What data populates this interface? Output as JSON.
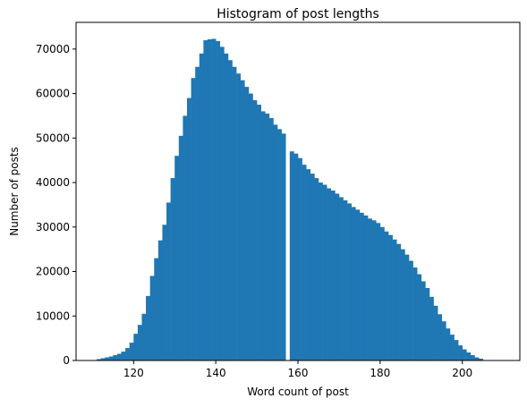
{
  "chart_data": {
    "type": "bar",
    "title": "Histogram of post lengths",
    "xlabel": "Word count of post",
    "ylabel": "Number of posts",
    "xlim": [
      106,
      214
    ],
    "ylim": [
      0,
      76000
    ],
    "xticks": [
      120,
      140,
      160,
      180,
      200
    ],
    "yticks": [
      0,
      10000,
      20000,
      30000,
      40000,
      50000,
      60000,
      70000
    ],
    "grid": false,
    "bar_color": "#1f77b4",
    "bins": {
      "start": 111,
      "width": 1,
      "values": [
        300,
        500,
        700,
        900,
        1200,
        1500,
        2000,
        2800,
        4000,
        6000,
        8000,
        10500,
        14500,
        19000,
        23000,
        27000,
        30500,
        35500,
        41000,
        46000,
        50500,
        55000,
        59000,
        63500,
        66000,
        69000,
        72000,
        72200,
        72300,
        71800,
        70500,
        69000,
        67500,
        66000,
        64500,
        63000,
        61500,
        60000,
        58500,
        57500,
        56000,
        55500,
        54500,
        53000,
        52000,
        51000,
        0,
        47000,
        46500,
        45500,
        44000,
        43000,
        42000,
        41000,
        40000,
        39500,
        38700,
        38200,
        37500,
        36700,
        36000,
        35300,
        34500,
        33900,
        33200,
        32600,
        31900,
        31500,
        30900,
        30000,
        29000,
        28200,
        27200,
        26200,
        25000,
        23800,
        22400,
        20900,
        19400,
        17800,
        16300,
        14300,
        12300,
        10400,
        8800,
        7200,
        5800,
        4600,
        3400,
        2500,
        1800,
        1200,
        700,
        400
      ]
    }
  }
}
